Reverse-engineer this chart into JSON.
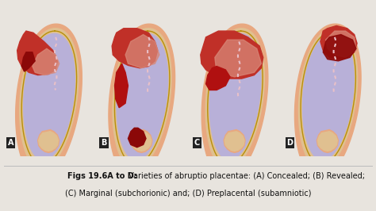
{
  "bg_color": "#e8e4de",
  "caption_bold": "Figs 19.6A to D:",
  "caption_normal": " Varieties of abruptio placentae: (A) Concealed; (B) Revealed;",
  "caption_line2": "(C) Marginal (subchorionic) and; (D) Preplacental (subamniotic)",
  "labels": [
    "A",
    "B",
    "C",
    "D"
  ],
  "outer_wall_color": "#e8a880",
  "myometrium_color": "#e0c090",
  "amniotic_color": "#b8b0d8",
  "placenta_red": "#c03028",
  "placenta_pink": "#d88878",
  "blood_dark": "#8b0808",
  "blood_red": "#b01010",
  "cervix_color": "#d09878",
  "cord_color": "#e8c0c8",
  "gold_line": "#b8900a",
  "label_bg": "#222222",
  "label_text": "#ffffff",
  "divider_color": "#bbbbbb",
  "caption_fontsize": 7.0,
  "caption_bold_fontsize": 7.0,
  "label_fontsize": 7
}
